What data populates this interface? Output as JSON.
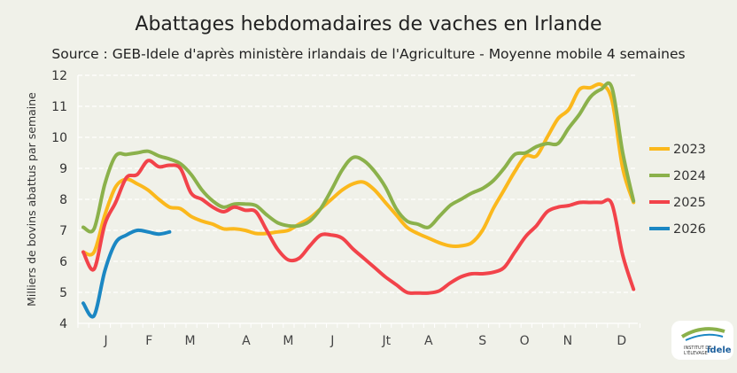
{
  "chart_data": {
    "type": "line",
    "title": "Abattages hebdomadaires de vaches en Irlande",
    "subtitle": "Source : GEB-Idele d'après ministère irlandais de l'Agriculture - Moyenne mobile 4 semaines",
    "ylabel": "Milliers de bovins abattus par semaine",
    "xlabel": "",
    "ylim": [
      4,
      12
    ],
    "yticks": [
      4,
      5,
      6,
      7,
      8,
      9,
      10,
      11,
      12
    ],
    "xticklabels": [
      "J",
      "F",
      "M",
      "A",
      "M",
      "J",
      "Jt",
      "A",
      "S",
      "O",
      "N",
      "D"
    ],
    "grid": true,
    "legend_position": "right",
    "series": [
      {
        "name": "2023",
        "color": "#fbb81c",
        "values": [
          6.3,
          6.3,
          7.5,
          8.4,
          8.65,
          8.5,
          8.3,
          8.0,
          7.75,
          7.7,
          7.45,
          7.3,
          7.2,
          7.05,
          7.05,
          7.0,
          6.9,
          6.9,
          6.95,
          7.0,
          7.2,
          7.4,
          7.7,
          8.0,
          8.3,
          8.5,
          8.55,
          8.3,
          7.9,
          7.5,
          7.1,
          6.9,
          6.75,
          6.6,
          6.5,
          6.5,
          6.6,
          7.0,
          7.7,
          8.3,
          8.9,
          9.4,
          9.4,
          10.0,
          10.6,
          10.9,
          11.55,
          11.6,
          11.7,
          11.2,
          9.0,
          7.9
        ]
      },
      {
        "name": "2024",
        "color": "#8bb14b",
        "values": [
          7.1,
          7.05,
          8.5,
          9.4,
          9.45,
          9.5,
          9.55,
          9.4,
          9.3,
          9.15,
          8.8,
          8.3,
          7.95,
          7.75,
          7.85,
          7.85,
          7.8,
          7.5,
          7.25,
          7.15,
          7.15,
          7.3,
          7.7,
          8.3,
          8.95,
          9.35,
          9.25,
          8.9,
          8.4,
          7.7,
          7.3,
          7.2,
          7.1,
          7.45,
          7.8,
          8.0,
          8.2,
          8.35,
          8.6,
          9.0,
          9.45,
          9.5,
          9.7,
          9.8,
          9.8,
          10.3,
          10.75,
          11.3,
          11.55,
          11.6,
          9.5,
          7.95
        ]
      },
      {
        "name": "2025",
        "color": "#f2434a",
        "values": [
          6.3,
          5.75,
          7.2,
          7.9,
          8.7,
          8.8,
          9.25,
          9.05,
          9.1,
          9.0,
          8.2,
          8.0,
          7.75,
          7.6,
          7.75,
          7.65,
          7.6,
          7.0,
          6.4,
          6.05,
          6.1,
          6.5,
          6.85,
          6.85,
          6.75,
          6.4,
          6.1,
          5.8,
          5.5,
          5.25,
          5.0,
          4.98,
          4.98,
          5.05,
          5.3,
          5.5,
          5.6,
          5.6,
          5.65,
          5.8,
          6.3,
          6.8,
          7.15,
          7.6,
          7.75,
          7.8,
          7.9,
          7.9,
          7.9,
          7.85,
          6.2,
          5.1
        ]
      },
      {
        "name": "2026",
        "color": "#1b87c3",
        "values": [
          4.65,
          4.25,
          5.7,
          6.6,
          6.85,
          7.0,
          6.95,
          6.88,
          6.95
        ]
      }
    ]
  },
  "logo": {
    "text": "INSTITUT DE L'ÉLEVAGE idele"
  }
}
